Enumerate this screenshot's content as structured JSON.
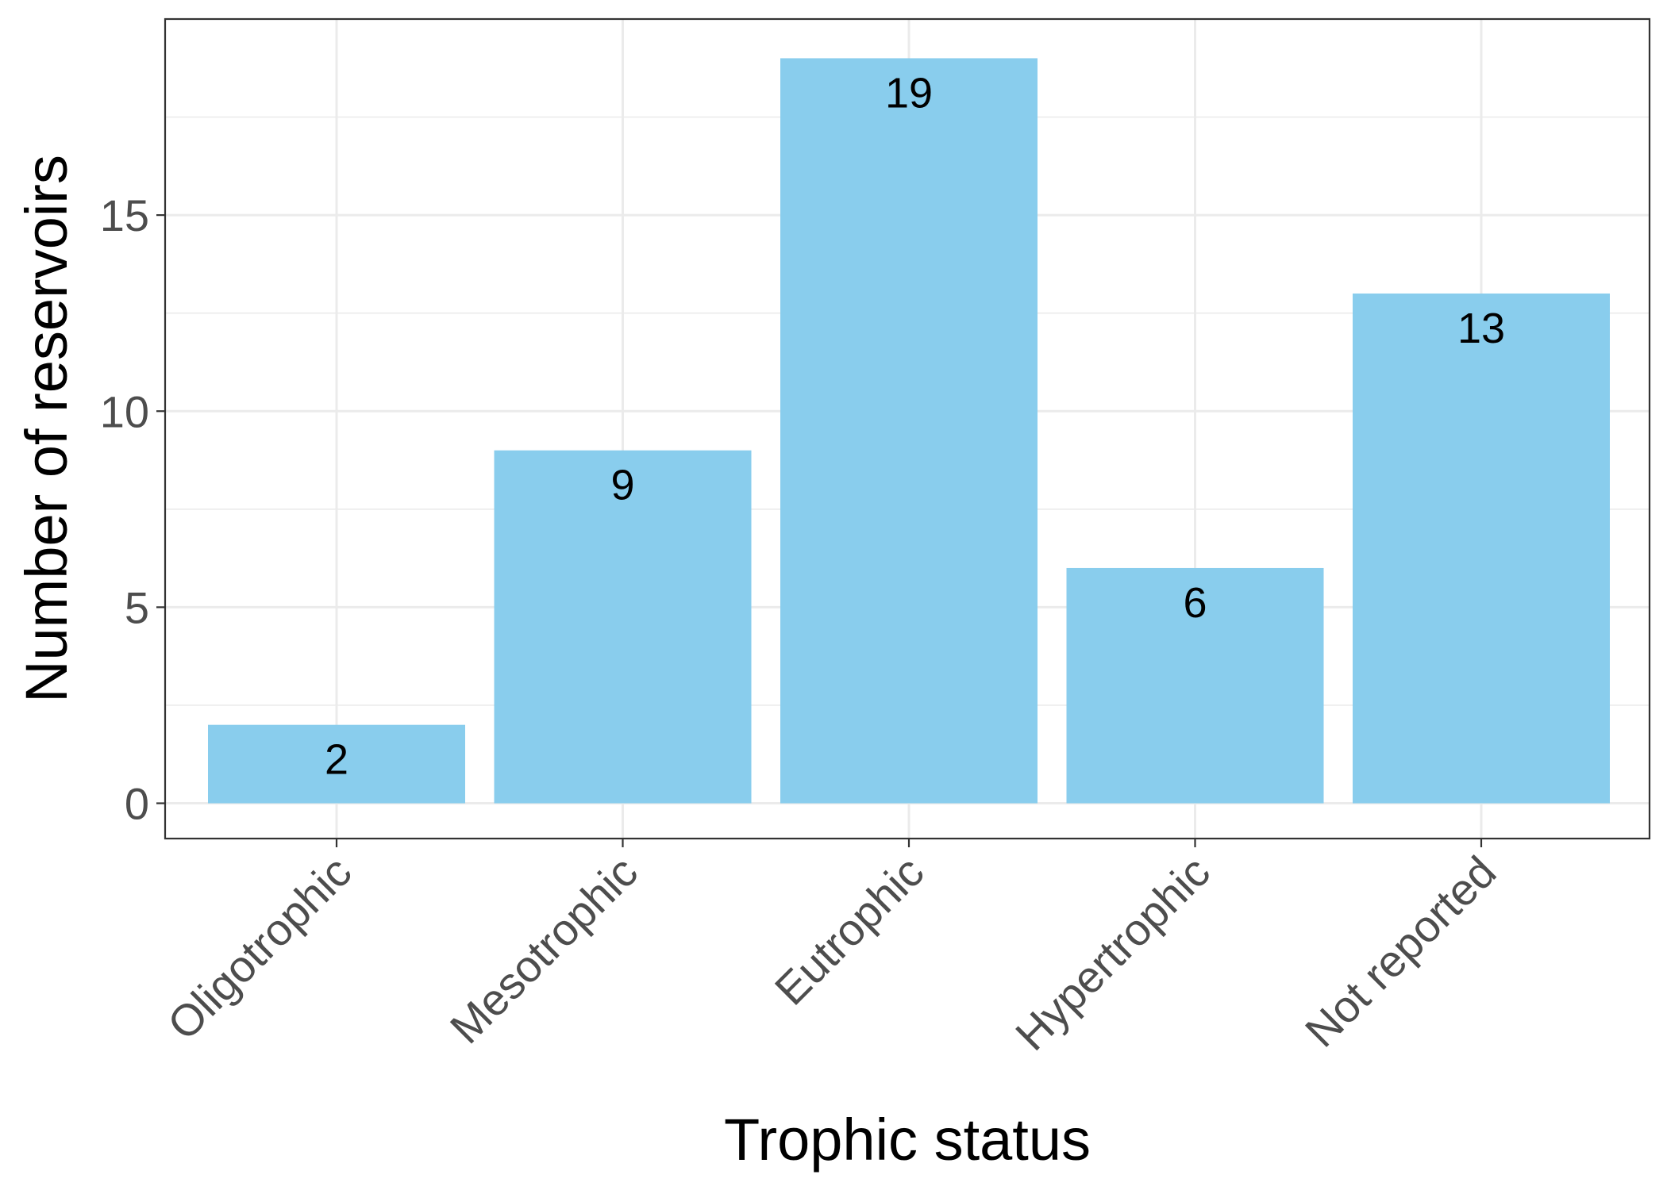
{
  "chart_data": {
    "type": "bar",
    "title": "",
    "xlabel": "Trophic status",
    "ylabel": "Number of reservoirs",
    "categories": [
      "Oligotrophic",
      "Mesotrophic",
      "Eutrophic",
      "Hypertrophic",
      "Not reported"
    ],
    "values": [
      2,
      9,
      19,
      6,
      13
    ],
    "data_labels": [
      "2",
      "9",
      "19",
      "6",
      "13"
    ],
    "ylim": [
      -0.9,
      20
    ],
    "y_ticks": [
      0,
      5,
      10,
      15
    ],
    "y_tick_labels": [
      "0",
      "5",
      "10",
      "15"
    ],
    "y_minor_ticks": [
      2.5,
      7.5,
      12.5,
      17.5
    ],
    "grid": true,
    "legend": "none",
    "colors": {
      "bar": "#89CDED",
      "grid": "#EBEBEB",
      "panel_border": "#333333",
      "tick_text": "#4D4D4D",
      "axis_title": "#000000",
      "data_label": "#000000"
    }
  }
}
